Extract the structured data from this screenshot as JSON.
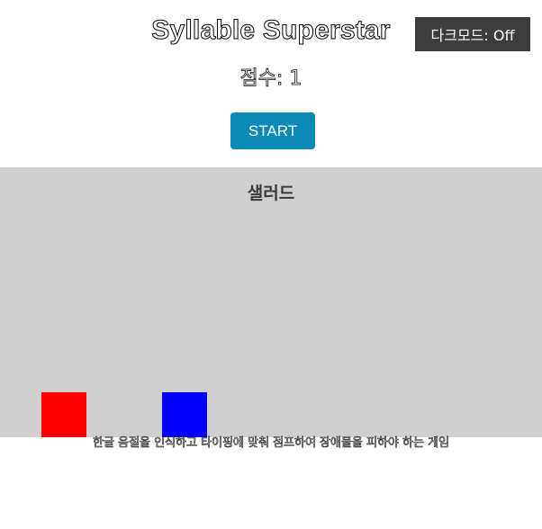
{
  "header": {
    "title": "Syllable Superstar",
    "dark_mode_label": "다크모드: Off"
  },
  "score": {
    "text": "점수: 1"
  },
  "controls": {
    "start_label": "START"
  },
  "game": {
    "current_syllable": "샐러드",
    "background_color": "#cfcfcf",
    "player_color": "#ff0000",
    "obstacle_color": "#0000ff"
  },
  "footer": {
    "description": "한글 음절을 인식하고 타이핑에 맞춰 점프하여 장애물을 피하야 하는 게임"
  },
  "colors": {
    "start_button": "#0b8ab8",
    "dark_toggle": "#3d3d3d"
  }
}
